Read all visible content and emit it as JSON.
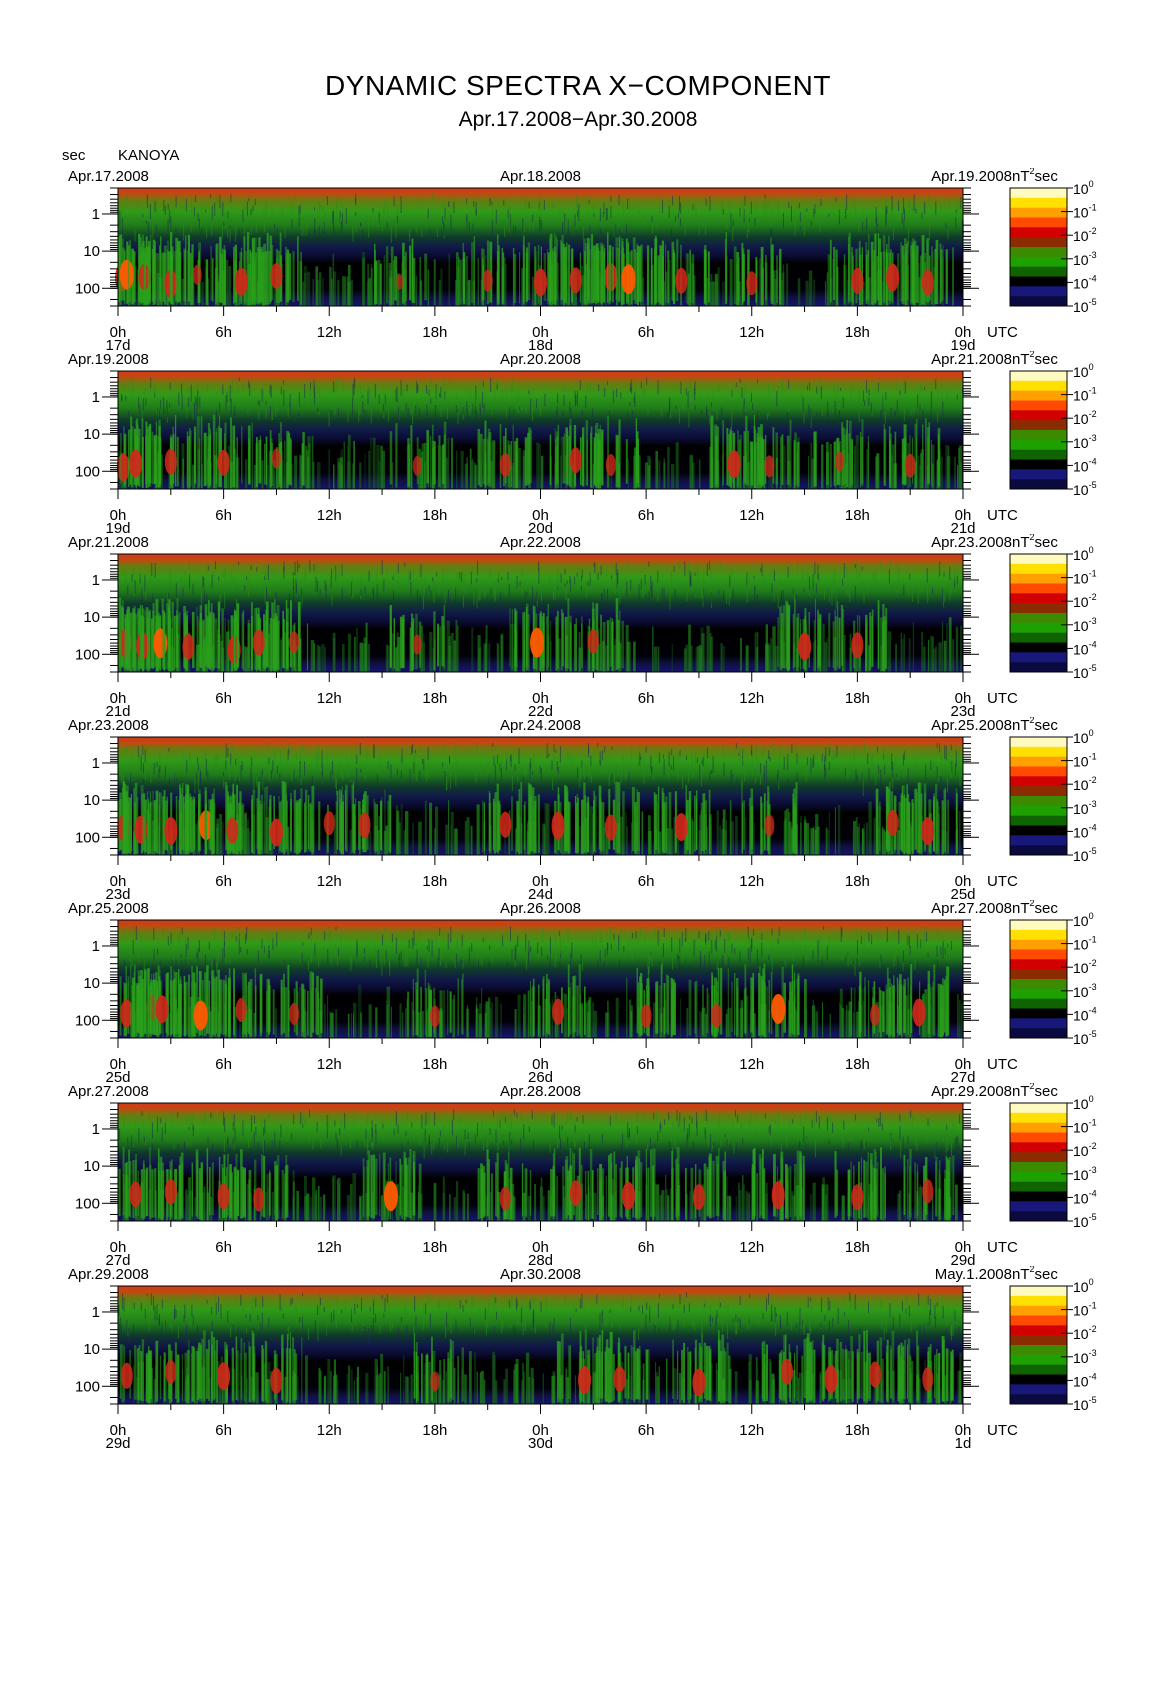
{
  "figure": {
    "title": "DYNAMIC SPECTRA X−COMPONENT",
    "subtitle": "Apr.17.2008−Apr.30.2008",
    "station": "KANOYA",
    "y_unit": "sec",
    "colorbar_unit_prefix": "nT",
    "colorbar_unit_sup": "2",
    "colorbar_unit_suffix": "sec",
    "utc_label": "UTC"
  },
  "chart_data": {
    "type": "heatmap",
    "title": "DYNAMIC SPECTRA X−COMPONENT",
    "subtitle": "Apr.17.2008−Apr.30.2008",
    "station": "KANOYA",
    "ylabel": "sec",
    "y_scale": "log",
    "y_ticks": [
      "1",
      "10",
      "100"
    ],
    "y_range_sec": [
      0.2,
      300
    ],
    "x_ticks": [
      "0h",
      "6h",
      "12h",
      "18h",
      "0h",
      "6h",
      "12h",
      "18h",
      "0h"
    ],
    "x_unit": "UTC",
    "colorbar": {
      "unit": "nT^2 sec",
      "ticks": [
        {
          "base": "10",
          "exp": "0"
        },
        {
          "base": "10",
          "exp": "-1"
        },
        {
          "base": "10",
          "exp": "-2"
        },
        {
          "base": "10",
          "exp": "-3"
        },
        {
          "base": "10",
          "exp": "-4"
        },
        {
          "base": "10",
          "exp": "-5"
        }
      ],
      "colors": [
        "#fffbc0",
        "#ffe000",
        "#ffa000",
        "#ff4a00",
        "#d20000",
        "#8a2b00",
        "#3b8a00",
        "#1ea000",
        "#0f6400",
        "#000000",
        "#18187a",
        "#0a0a40"
      ]
    },
    "panels": [
      {
        "date_left": "Apr.17.2008",
        "date_mid": "Apr.18.2008",
        "date_right": "Apr.19.2008",
        "day_labels": [
          "17d",
          "18d",
          "19d"
        ],
        "bursts": [
          [
            0.2,
            0.9
          ],
          [
            0.5,
            1.0
          ],
          [
            1.5,
            0.8
          ],
          [
            3.0,
            0.9
          ],
          [
            4.5,
            0.5
          ],
          [
            7.0,
            0.9
          ],
          [
            9.0,
            0.8
          ],
          [
            16.0,
            0.3
          ],
          [
            21.0,
            0.6
          ],
          [
            24.0,
            0.9
          ],
          [
            26.0,
            0.8
          ],
          [
            28.0,
            0.9
          ],
          [
            29.0,
            1.0
          ],
          [
            32.0,
            0.8
          ],
          [
            36.0,
            0.7
          ],
          [
            42.0,
            0.8
          ],
          [
            44.0,
            0.9
          ],
          [
            46.0,
            0.8
          ]
        ]
      },
      {
        "date_left": "Apr.19.2008",
        "date_mid": "Apr.20.2008",
        "date_right": "Apr.21.2008",
        "day_labels": [
          "19d",
          "20d",
          "21d"
        ],
        "bursts": [
          [
            0.3,
            0.9
          ],
          [
            1.0,
            0.9
          ],
          [
            3.0,
            0.8
          ],
          [
            6.0,
            0.8
          ],
          [
            9.0,
            0.5
          ],
          [
            17.0,
            0.5
          ],
          [
            22.0,
            0.7
          ],
          [
            26.0,
            0.8
          ],
          [
            28.0,
            0.6
          ],
          [
            35.0,
            0.9
          ],
          [
            37.0,
            0.6
          ],
          [
            41.0,
            0.5
          ],
          [
            45.0,
            0.7
          ]
        ]
      },
      {
        "date_left": "Apr.21.2008",
        "date_mid": "Apr.22.2008",
        "date_right": "Apr.23.2008",
        "day_labels": [
          "21d",
          "22d",
          "23d"
        ],
        "bursts": [
          [
            0.4,
            0.9
          ],
          [
            1.4,
            0.9
          ],
          [
            2.4,
            1.0
          ],
          [
            4.0,
            0.8
          ],
          [
            6.6,
            0.9
          ],
          [
            8.0,
            0.8
          ],
          [
            10.0,
            0.6
          ],
          [
            17.0,
            0.5
          ],
          [
            23.8,
            1.0
          ],
          [
            27.0,
            0.7
          ],
          [
            39.0,
            0.9
          ],
          [
            42.0,
            0.8
          ]
        ]
      },
      {
        "date_left": "Apr.23.2008",
        "date_mid": "Apr.24.2008",
        "date_right": "Apr.25.2008",
        "day_labels": [
          "23d",
          "24d",
          "25d"
        ],
        "bursts": [
          [
            0.3,
            0.8
          ],
          [
            1.3,
            0.9
          ],
          [
            3.0,
            0.9
          ],
          [
            5.0,
            1.0
          ],
          [
            6.5,
            0.8
          ],
          [
            9.0,
            0.9
          ],
          [
            12.0,
            0.7
          ],
          [
            14.0,
            0.8
          ],
          [
            22.0,
            0.8
          ],
          [
            25.0,
            0.9
          ],
          [
            28.0,
            0.8
          ],
          [
            32.0,
            0.9
          ],
          [
            37.0,
            0.6
          ],
          [
            44.0,
            0.8
          ],
          [
            46.0,
            0.9
          ]
        ]
      },
      {
        "date_left": "Apr.25.2008",
        "date_mid": "Apr.26.2008",
        "date_right": "Apr.27.2008",
        "day_labels": [
          "25d",
          "26d",
          "27d"
        ],
        "bursts": [
          [
            0.5,
            0.9
          ],
          [
            2.0,
            0.8
          ],
          [
            2.5,
            0.9
          ],
          [
            4.7,
            1.0
          ],
          [
            7.0,
            0.7
          ],
          [
            10.0,
            0.6
          ],
          [
            18.0,
            0.6
          ],
          [
            25.0,
            0.8
          ],
          [
            30.0,
            0.7
          ],
          [
            34.0,
            0.7
          ],
          [
            37.5,
            1.0
          ],
          [
            43.0,
            0.6
          ],
          [
            45.5,
            0.9
          ]
        ]
      },
      {
        "date_left": "Apr.27.2008",
        "date_mid": "Apr.28.2008",
        "date_right": "Apr.29.2008",
        "day_labels": [
          "27d",
          "28d",
          "29d"
        ],
        "bursts": [
          [
            1.0,
            0.8
          ],
          [
            3.0,
            0.8
          ],
          [
            6.0,
            0.8
          ],
          [
            8.0,
            0.7
          ],
          [
            15.5,
            1.0
          ],
          [
            22.0,
            0.7
          ],
          [
            26.0,
            0.8
          ],
          [
            29.0,
            0.9
          ],
          [
            33.0,
            0.8
          ],
          [
            37.5,
            0.9
          ],
          [
            42.0,
            0.8
          ],
          [
            46.0,
            0.7
          ]
        ]
      },
      {
        "date_left": "Apr.29.2008",
        "date_mid": "Apr.30.2008",
        "date_right": "May.1.2008",
        "day_labels": [
          "29d",
          "30d",
          "1d"
        ],
        "bursts": [
          [
            0.5,
            0.8
          ],
          [
            3.0,
            0.7
          ],
          [
            6.0,
            0.9
          ],
          [
            9.0,
            0.8
          ],
          [
            18.0,
            0.5
          ],
          [
            26.5,
            0.9
          ],
          [
            28.5,
            0.8
          ],
          [
            33.0,
            0.9
          ],
          [
            38.0,
            0.8
          ],
          [
            40.5,
            0.9
          ],
          [
            43.0,
            0.8
          ],
          [
            46.0,
            0.7
          ]
        ]
      }
    ]
  }
}
